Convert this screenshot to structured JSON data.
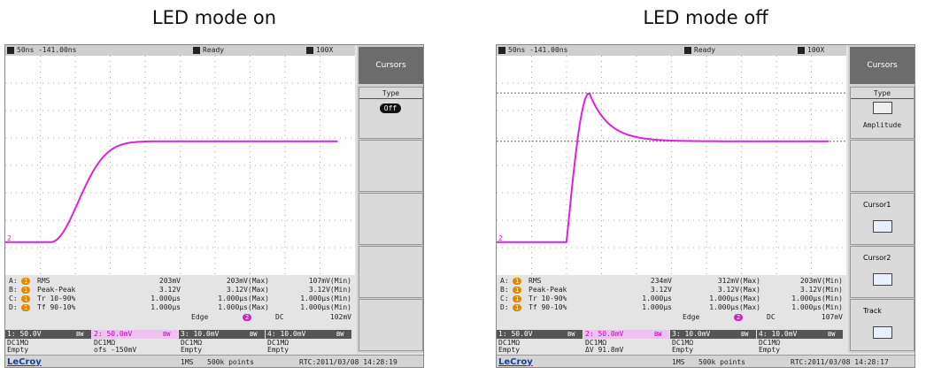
{
  "panels": [
    {
      "title": "LED mode on",
      "header": {
        "timebase": "50ns -141.00ns",
        "status": "Ready",
        "probe": "100X"
      },
      "menu_title": "Cursors",
      "menu": [
        {
          "label": "Type",
          "value": "Off"
        }
      ],
      "measurements": [
        {
          "id": "A:",
          "channel": "1",
          "name": "RMS",
          "value": "203mV",
          "max": "203mV(Max)",
          "min": "107mV(Min)"
        },
        {
          "id": "B:",
          "channel": "1",
          "name": "Peak-Peak",
          "value": "3.12V",
          "max": "3.12V(Max)",
          "min": "3.12V(Min)"
        },
        {
          "id": "C:",
          "channel": "1",
          "name": "Tr 10-90%",
          "value": "1.000µs",
          "max": "1.000µs(Max)",
          "min": "1.000µs(Min)"
        },
        {
          "id": "D:",
          "channel": "1",
          "name": "Tf 90-10%",
          "value": "1.000µs",
          "max": "1.000µs(Max)",
          "min": "1.000µs(Min)"
        }
      ],
      "trigger": {
        "mode": "Edge",
        "source": "2",
        "coupling": "DC",
        "level": "102mV"
      },
      "channels": [
        {
          "label": "1: 50.0V",
          "bw": "BW",
          "coupling": "DC1MΩ",
          "info": "Empty"
        },
        {
          "label": "2: 50.0mV",
          "bw": "BW",
          "coupling": "DC1MΩ",
          "info": "ofs -150mV"
        },
        {
          "label": "3: 10.0mV",
          "bw": "BW",
          "coupling": "DC1MΩ",
          "info": "Empty"
        },
        {
          "label": "4: 10.0mV",
          "bw": "BW",
          "coupling": "DC1MΩ",
          "info": "Empty"
        }
      ],
      "footer": {
        "brand": "LeCroy",
        "rate": "1MS",
        "points": "500k points",
        "clock": "RTC:2011/03/08 14:28:19"
      }
    },
    {
      "title": "LED mode off",
      "header": {
        "timebase": "50ns -141.00ns",
        "status": "Ready",
        "probe": "100X"
      },
      "menu_title": "Cursors",
      "menu": [
        {
          "label": "Type",
          "value": "Amplitude"
        },
        {
          "label": "Cursor1"
        },
        {
          "label": "Cursor2"
        },
        {
          "label": "Track"
        }
      ],
      "measurements": [
        {
          "id": "A:",
          "channel": "1",
          "name": "RMS",
          "value": "234mV",
          "max": "312mV(Max)",
          "min": "203mV(Min)"
        },
        {
          "id": "B:",
          "channel": "1",
          "name": "Peak-Peak",
          "value": "3.12V",
          "max": "3.12V(Max)",
          "min": "3.12V(Min)"
        },
        {
          "id": "C:",
          "channel": "1",
          "name": "Tr 10-90%",
          "value": "1.000µs",
          "max": "1.000µs(Max)",
          "min": "1.000µs(Min)"
        },
        {
          "id": "D:",
          "channel": "1",
          "name": "Tf 90-10%",
          "value": "1.000µs",
          "max": "1.000µs(Max)",
          "min": "1.000µs(Min)"
        }
      ],
      "trigger": {
        "mode": "Edge",
        "source": "2",
        "coupling": "DC",
        "level": "107mV"
      },
      "channels": [
        {
          "label": "1: 50.0V",
          "bw": "BW",
          "coupling": "DC1MΩ",
          "info": "Empty"
        },
        {
          "label": "2: 50.0mV",
          "bw": "BW",
          "coupling": "DC1MΩ",
          "info": "ΔV   91.8mV"
        },
        {
          "label": "3: 10.0mV",
          "bw": "BW",
          "coupling": "DC1MΩ",
          "info": "Empty"
        },
        {
          "label": "4: 10.0mV",
          "bw": "BW",
          "coupling": "DC1MΩ",
          "info": "Empty"
        }
      ],
      "footer": {
        "brand": "LeCroy",
        "rate": "1MS",
        "points": "500k points",
        "clock": "RTC:2011/03/08 14:28:17"
      }
    }
  ]
}
